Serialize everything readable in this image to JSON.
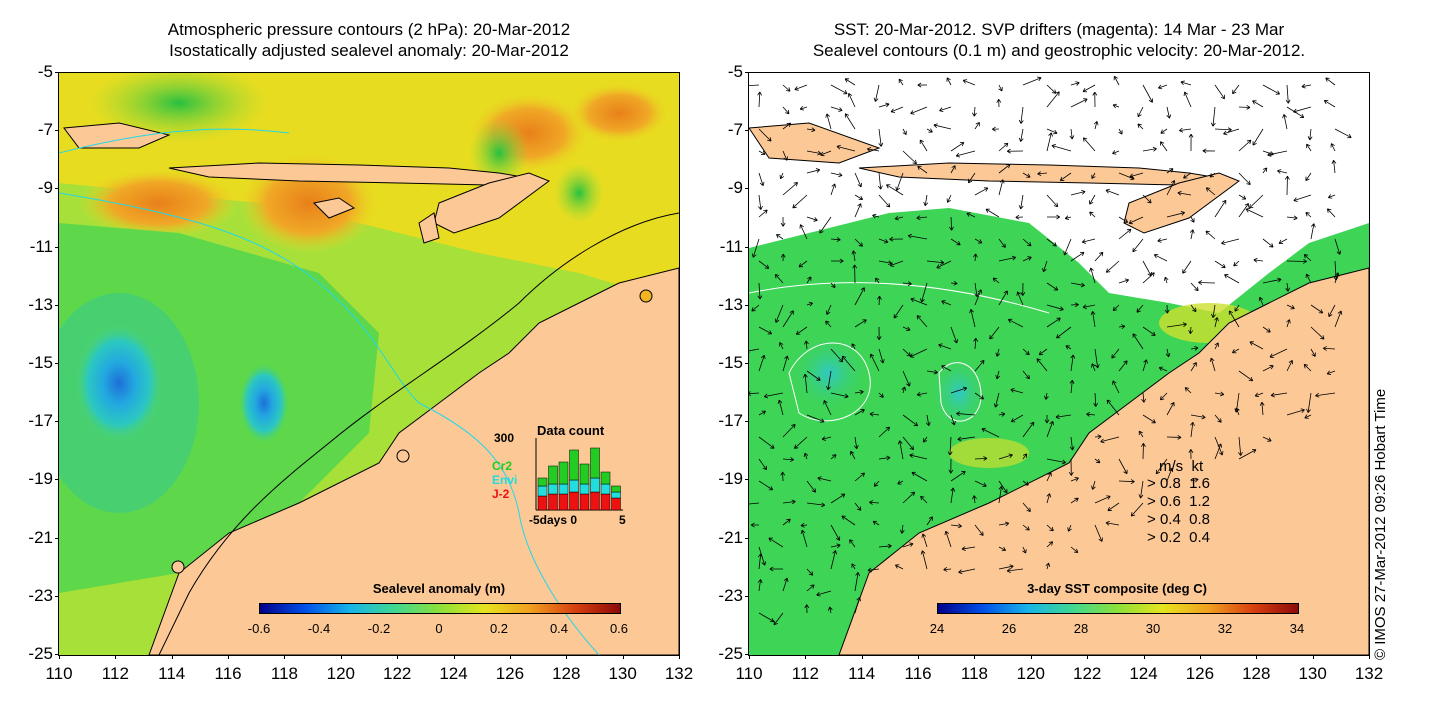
{
  "left": {
    "title_line1": "Atmospheric pressure contours (2 hPa): 20-Mar-2012",
    "title_line2": "Isostatically adjusted sealevel anomaly: 20-Mar-2012",
    "colorbar": {
      "title": "Sealevel anomaly (m)",
      "labels": [
        "-0.6",
        "-0.4",
        "-0.2",
        "0",
        "0.2",
        "0.4",
        "0.6"
      ]
    },
    "data_count": {
      "title": "Data count",
      "max_label": "300",
      "x_label": "-5days 0",
      "x_end": "5",
      "series": [
        "Cr2",
        "Envi",
        "J-2"
      ]
    }
  },
  "right": {
    "title_line1": "SST: 20-Mar-2012. SVP drifters (magenta): 14 Mar - 23 Mar",
    "title_line2": "Sealevel contours (0.1 m) and geostrophic velocity: 20-Mar-2012.",
    "colorbar": {
      "title": "3-day SST composite (deg C)",
      "labels": [
        "24",
        "26",
        "28",
        "30",
        "32",
        "34"
      ]
    },
    "speed_legend": {
      "header": "m/s  kt",
      "rows": [
        "0.8  1.6",
        "0.6  1.2",
        "0.4  0.8",
        "0.2  0.4"
      ]
    }
  },
  "axes": {
    "y_labels": [
      "-5",
      "-7",
      "-9",
      "-11",
      "-13",
      "-15",
      "-17",
      "-19",
      "-21",
      "-23",
      "-25"
    ],
    "x_labels": [
      "110",
      "112",
      "114",
      "116",
      "118",
      "120",
      "122",
      "124",
      "126",
      "128",
      "130",
      "132"
    ]
  },
  "credit": "© IMOS 27-Mar-2012 09:26 Hobart Time",
  "colors": {
    "land": "#fbc896",
    "ocean_green": "#5ed84a",
    "ocean_yellow": "#e6e41e",
    "ocean_cyan": "#2cc8d8",
    "ocean_blue": "#1e78d8",
    "ocean_orange": "#f0a020",
    "series_cr2": "#22cc22",
    "series_envi": "#22dddd",
    "series_j2": "#ee1111"
  }
}
